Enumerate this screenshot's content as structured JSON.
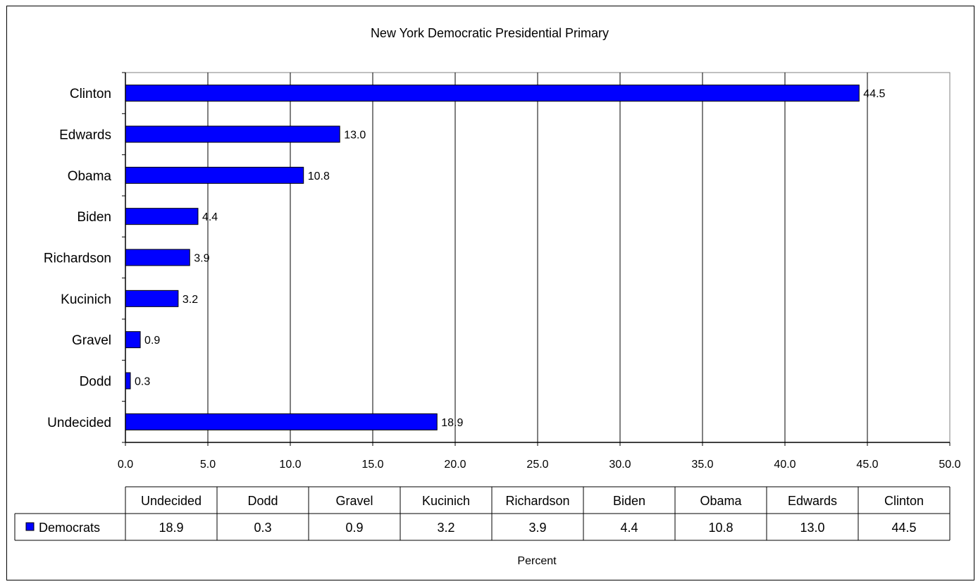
{
  "chart_data": {
    "type": "bar",
    "orientation": "horizontal",
    "title": "New York Democratic Presidential Primary",
    "xlabel": "Percent",
    "ylabel": "",
    "xlim": [
      0,
      50
    ],
    "x_ticks": [
      "0.0",
      "5.0",
      "10.0",
      "15.0",
      "20.0",
      "25.0",
      "30.0",
      "35.0",
      "40.0",
      "45.0",
      "50.0"
    ],
    "grid": "vertical major gridlines",
    "categories": [
      "Undecided",
      "Dodd",
      "Gravel",
      "Kucinich",
      "Richardson",
      "Biden",
      "Obama",
      "Edwards",
      "Clinton"
    ],
    "series": [
      {
        "name": "Democrats",
        "color": "#0000ff",
        "values": [
          18.9,
          0.3,
          0.9,
          3.2,
          3.9,
          4.4,
          10.8,
          13.0,
          44.5
        ],
        "labels": [
          "18.9",
          "0.3",
          "0.9",
          "3.2",
          "3.9",
          "4.4",
          "10.8",
          "13.0",
          "44.5"
        ]
      }
    ],
    "data_table": true,
    "legend": "data table row key"
  }
}
